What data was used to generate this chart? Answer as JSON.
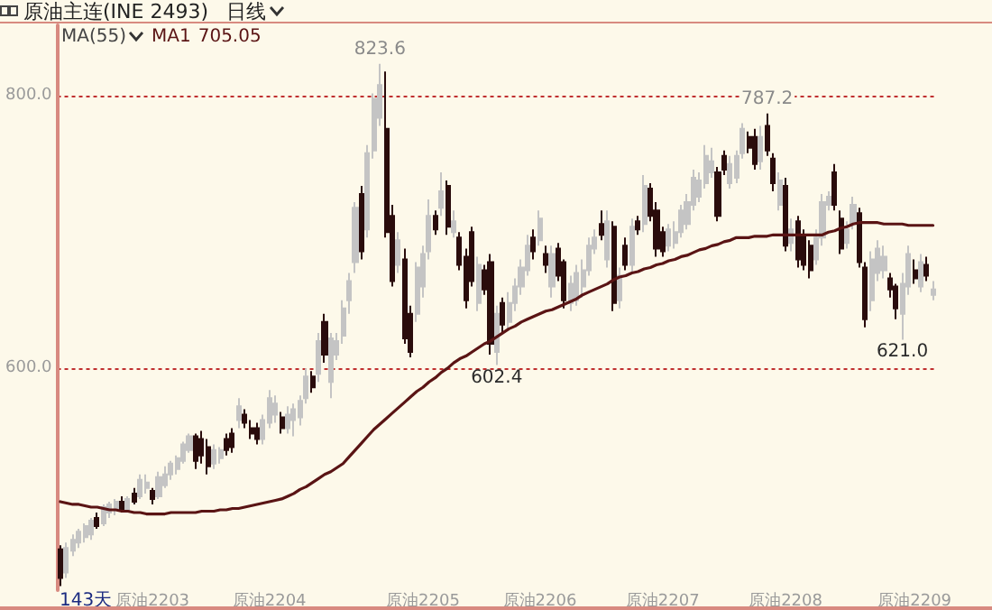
{
  "chart_data": {
    "type": "candlestick",
    "title": "原油主连(INE 2493)",
    "subtitle": "日线",
    "categories": [
      null,
      null,
      null,
      null,
      null,
      null,
      null,
      null,
      null,
      null,
      null,
      null,
      null,
      null,
      null,
      "原油2203",
      null,
      null,
      null,
      null,
      null,
      null,
      null,
      null,
      null,
      null,
      null,
      null,
      null,
      null,
      null,
      null,
      null,
      null,
      "原油2204",
      null,
      null,
      null,
      null,
      null,
      null,
      null,
      null,
      null,
      null,
      null,
      null,
      null,
      null,
      null,
      null,
      null,
      null,
      null,
      null,
      null,
      null,
      null,
      null,
      "原油2205",
      null,
      null,
      null,
      null,
      null,
      null,
      null,
      null,
      null,
      null,
      null,
      null,
      null,
      null,
      null,
      null,
      null,
      null,
      "原油2206",
      null,
      null,
      null,
      null,
      null,
      null,
      null,
      null,
      null,
      null,
      null,
      null,
      null,
      null,
      null,
      null,
      null,
      null,
      null,
      "原油2207",
      null,
      null,
      null,
      null,
      null,
      null,
      null,
      null,
      null,
      null,
      null,
      null,
      null,
      null,
      null,
      null,
      null,
      null,
      null,
      "原油2208",
      null,
      null,
      null,
      null,
      null,
      null,
      null,
      null,
      null,
      null,
      null,
      null,
      null,
      null,
      null,
      null,
      null,
      null,
      null,
      null,
      "原油2209",
      null,
      null,
      null
    ],
    "ohlc": [
      [
        467,
        470,
        440,
        446
      ],
      [
        450,
        472,
        446,
        468
      ],
      [
        466,
        478,
        462,
        474
      ],
      [
        472,
        482,
        468,
        480
      ],
      [
        476,
        486,
        472,
        484
      ],
      [
        478,
        490,
        474,
        488
      ],
      [
        490,
        494,
        482,
        484
      ],
      [
        486,
        500,
        484,
        498
      ],
      [
        494,
        502,
        490,
        500
      ],
      [
        496,
        504,
        492,
        502
      ],
      [
        502,
        506,
        494,
        496
      ],
      [
        496,
        506,
        494,
        504
      ],
      [
        508,
        512,
        500,
        502
      ],
      [
        506,
        522,
        504,
        518
      ],
      [
        512,
        522,
        508,
        516
      ],
      [
        510,
        512,
        500,
        504
      ],
      [
        506,
        524,
        504,
        520
      ],
      [
        514,
        528,
        512,
        522
      ],
      [
        522,
        532,
        518,
        530
      ],
      [
        526,
        536,
        522,
        534
      ],
      [
        532,
        546,
        530,
        544
      ],
      [
        540,
        552,
        538,
        550
      ],
      [
        550,
        552,
        526,
        532
      ],
      [
        548,
        554,
        530,
        536
      ],
      [
        542,
        548,
        522,
        528
      ],
      [
        530,
        544,
        526,
        540
      ],
      [
        534,
        542,
        530,
        540
      ],
      [
        548,
        552,
        536,
        540
      ],
      [
        552,
        556,
        538,
        542
      ],
      [
        562,
        578,
        556,
        572
      ],
      [
        566,
        570,
        556,
        560
      ],
      [
        556,
        562,
        548,
        552
      ],
      [
        556,
        560,
        544,
        548
      ],
      [
        548,
        566,
        544,
        562
      ],
      [
        560,
        584,
        556,
        578
      ],
      [
        566,
        580,
        560,
        574
      ],
      [
        564,
        568,
        552,
        556
      ],
      [
        556,
        572,
        552,
        566
      ],
      [
        562,
        574,
        550,
        570
      ],
      [
        564,
        580,
        558,
        576
      ],
      [
        578,
        600,
        574,
        594
      ],
      [
        594,
        598,
        582,
        586
      ],
      [
        596,
        626,
        590,
        620
      ],
      [
        634,
        640,
        604,
        610
      ],
      [
        590,
        626,
        578,
        622
      ],
      [
        610,
        626,
        606,
        620
      ],
      [
        624,
        650,
        618,
        644
      ],
      [
        650,
        670,
        640,
        664
      ],
      [
        678,
        722,
        670,
        718
      ],
      [
        728,
        734,
        680,
        686
      ],
      [
        702,
        764,
        696,
        758
      ],
      [
        760,
        802,
        754,
        798
      ],
      [
        784,
        823.6,
        778,
        808
      ],
      [
        776,
        818,
        696,
        700
      ],
      [
        712,
        720,
        660,
        664
      ],
      [
        676,
        700,
        670,
        694
      ],
      [
        680,
        688,
        618,
        622
      ],
      [
        640,
        646,
        608,
        612
      ],
      [
        640,
        678,
        634,
        674
      ],
      [
        660,
        690,
        652,
        684
      ],
      [
        686,
        724,
        680,
        712
      ],
      [
        712,
        716,
        698,
        702
      ],
      [
        718,
        744,
        712,
        730
      ],
      [
        734,
        738,
        698,
        704
      ],
      [
        700,
        716,
        696,
        708
      ],
      [
        696,
        700,
        672,
        676
      ],
      [
        682,
        688,
        644,
        650
      ],
      [
        700,
        704,
        660,
        664
      ],
      [
        648,
        682,
        642,
        676
      ],
      [
        672,
        676,
        654,
        658
      ],
      [
        678,
        684,
        610,
        618
      ],
      [
        612,
        646,
        602.4,
        640
      ],
      [
        648,
        652,
        626,
        632
      ],
      [
        634,
        656,
        628,
        648
      ],
      [
        648,
        666,
        642,
        660
      ],
      [
        660,
        680,
        654,
        674
      ],
      [
        672,
        698,
        668,
        690
      ],
      [
        696,
        702,
        680,
        686
      ],
      [
        694,
        716,
        690,
        710
      ],
      [
        684,
        690,
        670,
        676
      ],
      [
        660,
        690,
        652,
        684
      ],
      [
        688,
        692,
        664,
        668
      ],
      [
        678,
        680,
        644,
        650
      ],
      [
        648,
        668,
        642,
        662
      ],
      [
        650,
        676,
        646,
        670
      ],
      [
        660,
        680,
        652,
        672
      ],
      [
        672,
        696,
        668,
        690
      ],
      [
        688,
        702,
        684,
        696
      ],
      [
        706,
        716,
        694,
        698
      ],
      [
        680,
        716,
        674,
        708
      ],
      [
        704,
        708,
        642,
        648
      ],
      [
        650,
        674,
        644,
        668
      ],
      [
        690,
        696,
        672,
        676
      ],
      [
        676,
        710,
        670,
        704
      ],
      [
        708,
        712,
        698,
        702
      ],
      [
        706,
        742,
        700,
        734
      ],
      [
        732,
        736,
        708,
        712
      ],
      [
        716,
        722,
        682,
        688
      ],
      [
        700,
        704,
        682,
        686
      ],
      [
        690,
        706,
        686,
        702
      ],
      [
        692,
        708,
        688,
        700
      ],
      [
        700,
        720,
        696,
        716
      ],
      [
        706,
        728,
        702,
        722
      ],
      [
        720,
        746,
        716,
        740
      ],
      [
        726,
        744,
        722,
        738
      ],
      [
        736,
        764,
        732,
        756
      ],
      [
        744,
        762,
        740,
        752
      ],
      [
        744,
        748,
        708,
        712
      ],
      [
        756,
        760,
        742,
        746
      ],
      [
        736,
        756,
        732,
        750
      ],
      [
        740,
        760,
        736,
        756
      ],
      [
        758,
        780,
        754,
        776
      ],
      [
        770,
        774,
        758,
        762
      ],
      [
        770,
        776,
        746,
        750
      ],
      [
        752,
        778,
        746,
        770
      ],
      [
        778,
        787.2,
        756,
        760
      ],
      [
        754,
        758,
        730,
        736
      ],
      [
        720,
        744,
        716,
        738
      ],
      [
        734,
        740,
        686,
        690
      ],
      [
        692,
        710,
        686,
        702
      ],
      [
        708,
        712,
        674,
        680
      ],
      [
        698,
        702,
        672,
        676
      ],
      [
        690,
        694,
        666,
        672
      ],
      [
        680,
        702,
        676,
        696
      ],
      [
        696,
        728,
        690,
        722
      ],
      [
        720,
        730,
        716,
        726
      ],
      [
        744,
        750,
        716,
        720
      ],
      [
        710,
        716,
        684,
        688
      ],
      [
        692,
        708,
        688,
        702
      ],
      [
        706,
        726,
        702,
        720
      ],
      [
        714,
        718,
        674,
        678
      ],
      [
        674,
        678,
        630,
        636
      ],
      [
        650,
        686,
        642,
        680
      ],
      [
        670,
        694,
        664,
        688
      ],
      [
        672,
        690,
        666,
        682
      ],
      [
        666,
        670,
        652,
        658
      ],
      [
        660,
        662,
        636,
        644
      ],
      [
        640,
        670,
        621,
        662
      ],
      [
        660,
        690,
        654,
        684
      ],
      [
        672,
        680,
        662,
        666
      ],
      [
        660,
        684,
        656,
        678
      ],
      [
        676,
        682,
        664,
        668
      ],
      [
        654,
        664,
        650,
        658
      ]
    ],
    "colors": [
      "#2a0c0c",
      "#c4c4c4",
      "#c4c4c4",
      "#c4c4c4",
      "#c4c4c4",
      "#c4c4c4",
      "#2a0c0c",
      "#c4c4c4",
      "#c4c4c4",
      "#c4c4c4",
      "#2a0c0c",
      "#c4c4c4",
      "#2a0c0c",
      "#c4c4c4",
      "#c4c4c4",
      "#2a0c0c",
      "#c4c4c4",
      "#c4c4c4",
      "#c4c4c4",
      "#c4c4c4",
      "#c4c4c4",
      "#c4c4c4",
      "#2a0c0c",
      "#2a0c0c",
      "#2a0c0c",
      "#c4c4c4",
      "#c4c4c4",
      "#2a0c0c",
      "#2a0c0c",
      "#c4c4c4",
      "#2a0c0c",
      "#2a0c0c",
      "#2a0c0c",
      "#c4c4c4",
      "#c4c4c4",
      "#c4c4c4",
      "#2a0c0c",
      "#c4c4c4",
      "#c4c4c4",
      "#c4c4c4",
      "#c4c4c4",
      "#2a0c0c",
      "#c4c4c4",
      "#2a0c0c",
      "#c4c4c4",
      "#c4c4c4",
      "#c4c4c4",
      "#c4c4c4",
      "#c4c4c4",
      "#2a0c0c",
      "#c4c4c4",
      "#c4c4c4",
      "#c4c4c4",
      "#2a0c0c",
      "#2a0c0c",
      "#c4c4c4",
      "#2a0c0c",
      "#2a0c0c",
      "#c4c4c4",
      "#c4c4c4",
      "#c4c4c4",
      "#2a0c0c",
      "#c4c4c4",
      "#2a0c0c",
      "#c4c4c4",
      "#2a0c0c",
      "#2a0c0c",
      "#2a0c0c",
      "#c4c4c4",
      "#2a0c0c",
      "#2a0c0c",
      "#c4c4c4",
      "#2a0c0c",
      "#c4c4c4",
      "#c4c4c4",
      "#c4c4c4",
      "#c4c4c4",
      "#2a0c0c",
      "#c4c4c4",
      "#2a0c0c",
      "#c4c4c4",
      "#2a0c0c",
      "#2a0c0c",
      "#c4c4c4",
      "#c4c4c4",
      "#c4c4c4",
      "#c4c4c4",
      "#c4c4c4",
      "#2a0c0c",
      "#c4c4c4",
      "#2a0c0c",
      "#c4c4c4",
      "#2a0c0c",
      "#c4c4c4",
      "#2a0c0c",
      "#c4c4c4",
      "#2a0c0c",
      "#2a0c0c",
      "#2a0c0c",
      "#c4c4c4",
      "#c4c4c4",
      "#c4c4c4",
      "#c4c4c4",
      "#c4c4c4",
      "#c4c4c4",
      "#c4c4c4",
      "#c4c4c4",
      "#2a0c0c",
      "#2a0c0c",
      "#c4c4c4",
      "#c4c4c4",
      "#c4c4c4",
      "#2a0c0c",
      "#2a0c0c",
      "#c4c4c4",
      "#2a0c0c",
      "#2a0c0c",
      "#c4c4c4",
      "#2a0c0c",
      "#c4c4c4",
      "#2a0c0c",
      "#2a0c0c",
      "#2a0c0c",
      "#c4c4c4",
      "#c4c4c4",
      "#c4c4c4",
      "#2a0c0c",
      "#2a0c0c",
      "#c4c4c4",
      "#c4c4c4",
      "#2a0c0c",
      "#2a0c0c",
      "#c4c4c4",
      "#c4c4c4",
      "#c4c4c4",
      "#2a0c0c",
      "#2a0c0c",
      "#c4c4c4",
      "#c4c4c4",
      "#2a0c0c",
      "#c4c4c4",
      "#2a0c0c",
      "#c4c4c4"
    ],
    "series": [
      {
        "name": "MA1",
        "type": "line",
        "color": "#5a1414",
        "values": [
          502,
          501,
          500,
          500,
          499,
          498,
          498,
          497,
          496,
          496,
          495,
          495,
          494,
          494,
          493,
          493,
          493,
          493,
          494,
          494,
          494,
          494,
          494,
          495,
          495,
          495,
          496,
          496,
          497,
          497,
          498,
          499,
          500,
          501,
          502,
          503,
          504,
          506,
          508,
          511,
          513,
          516,
          519,
          522,
          524,
          527,
          530,
          535,
          540,
          545,
          550,
          555,
          559,
          563,
          567,
          571,
          575,
          579,
          583,
          586,
          590,
          593,
          597,
          600,
          604,
          607,
          609,
          612,
          615,
          618,
          620,
          623,
          626,
          629,
          631,
          634,
          636,
          638,
          640,
          642,
          643,
          645,
          647,
          649,
          651,
          654,
          656,
          658,
          660,
          662,
          665,
          667,
          668,
          670,
          671,
          673,
          674,
          676,
          677,
          679,
          680,
          682,
          683,
          685,
          687,
          688,
          690,
          691,
          693,
          694,
          696,
          696,
          696,
          697,
          697,
          697,
          698,
          698,
          698,
          698,
          698,
          698,
          698,
          698,
          698,
          700,
          701,
          703,
          704,
          706,
          707,
          707,
          707,
          707,
          706,
          706,
          706,
          706,
          705,
          705,
          705,
          705,
          705
        ]
      }
    ],
    "ylim": [
      437,
      852
    ],
    "yticks": [
      {
        "value": 600,
        "label": "600.0"
      },
      {
        "value": 800,
        "label": "800.0"
      }
    ],
    "grid": "y",
    "annotations": [
      "MA(55)",
      "705.05",
      "143天",
      "823.6",
      "787.2",
      {
        "text": "602.4",
        "y": 602.4
      },
      {
        "text": "621.0",
        "y": 621
      }
    ]
  }
}
